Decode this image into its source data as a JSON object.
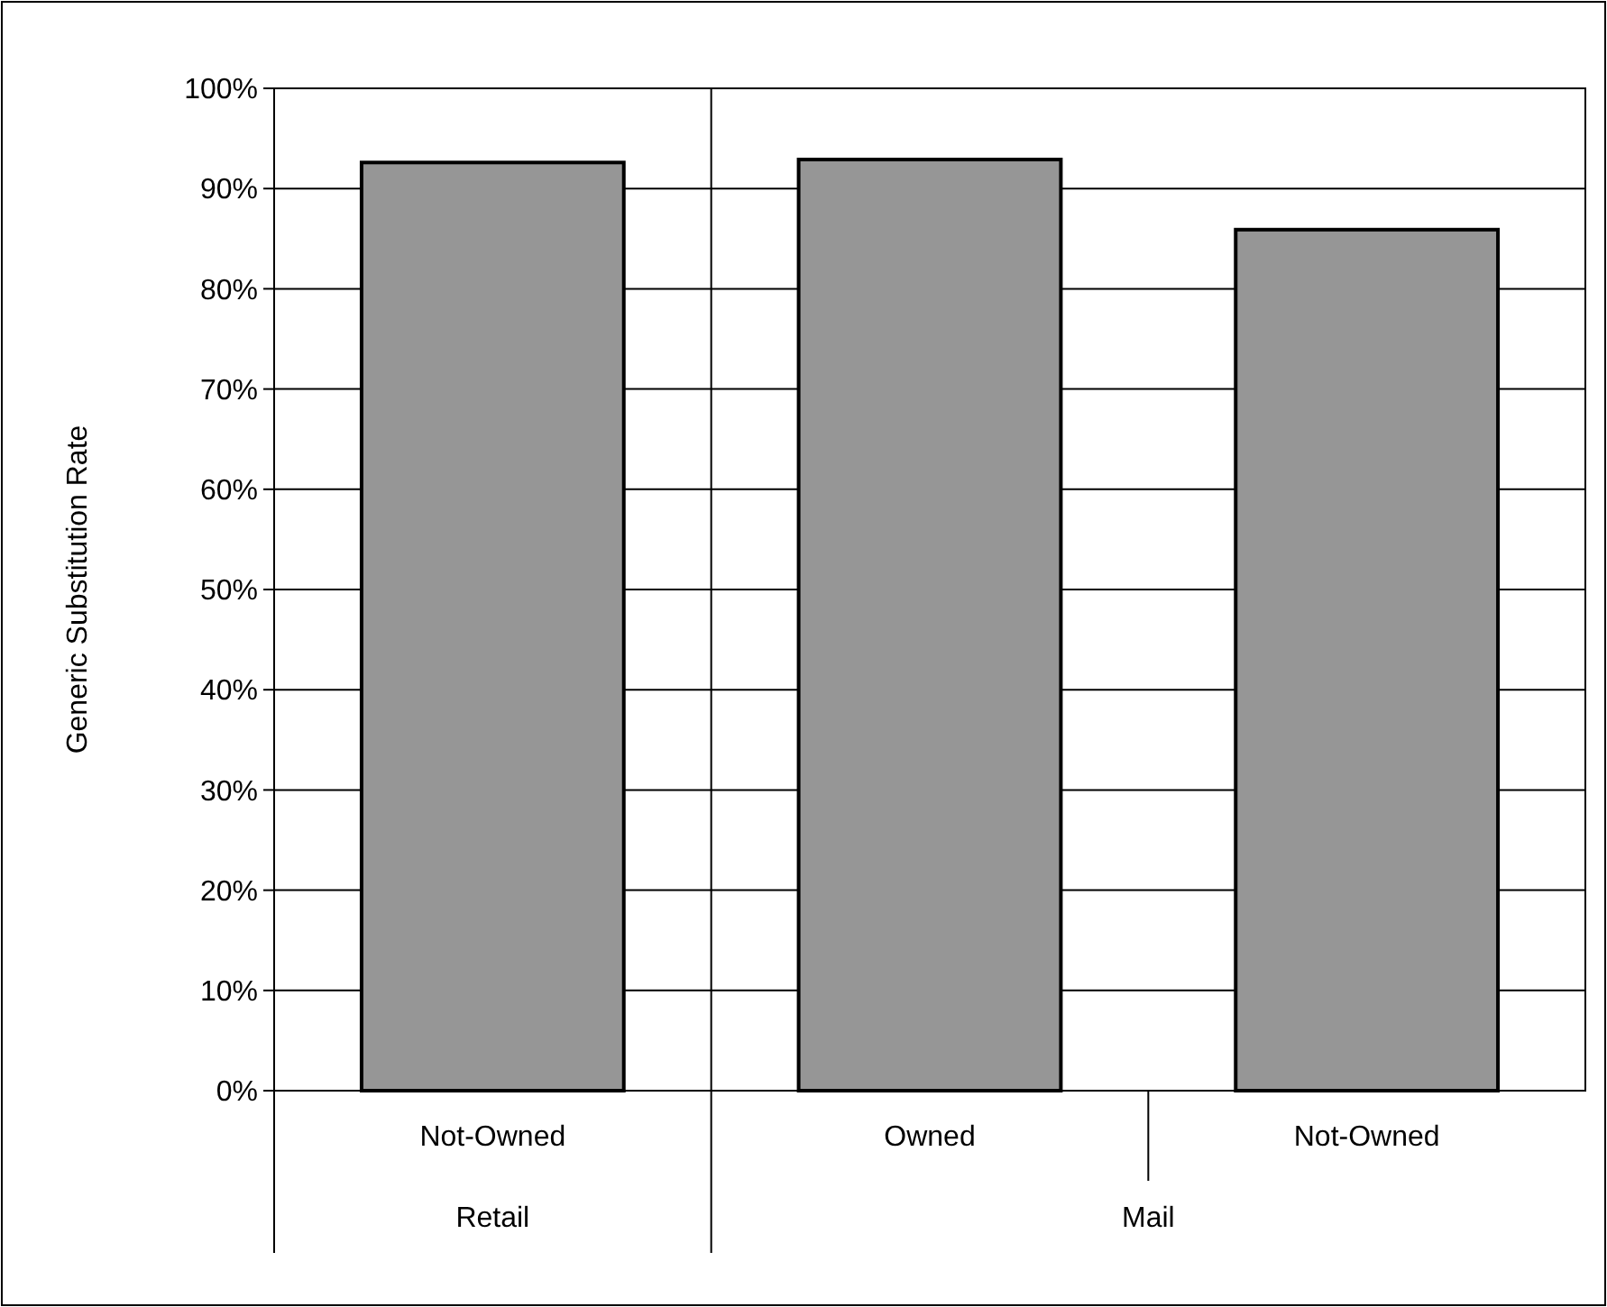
{
  "chart_data": {
    "type": "bar",
    "ylabel": "Generic Substitution Rate",
    "categories": [
      "Not-Owned",
      "Owned",
      "Not-Owned"
    ],
    "values": [
      92.6,
      92.9,
      85.9
    ],
    "color": "#969696",
    "ylim": [
      0,
      100
    ],
    "yticks": [
      {
        "value": 0,
        "label": "0%"
      },
      {
        "value": 10,
        "label": "10%"
      },
      {
        "value": 20,
        "label": "20%"
      },
      {
        "value": 30,
        "label": "30%"
      },
      {
        "value": 40,
        "label": "40%"
      },
      {
        "value": 50,
        "label": "50%"
      },
      {
        "value": 60,
        "label": "60%"
      },
      {
        "value": 70,
        "label": "70%"
      },
      {
        "value": 80,
        "label": "80%"
      },
      {
        "value": 90,
        "label": "90%"
      },
      {
        "value": 100,
        "label": "100%"
      }
    ],
    "grid": "y",
    "annotations": [
      "Retail",
      "Mail"
    ]
  }
}
